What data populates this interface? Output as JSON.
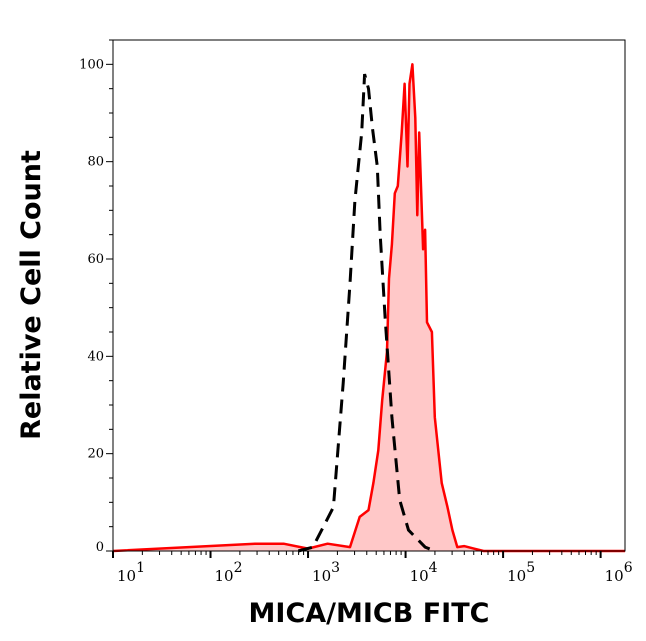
{
  "chart_data": {
    "type": "area",
    "xlabel": "MICA/MICB FITC",
    "ylabel": "Relative Cell Count",
    "xscale": "log",
    "xlim": [
      10,
      1778279
    ],
    "ylim": [
      0,
      105
    ],
    "xticks": [
      10,
      100,
      1000,
      10000,
      100000,
      1000000
    ],
    "xtick_labels": [
      {
        "base": "10",
        "exp": "1"
      },
      {
        "base": "10",
        "exp": "2"
      },
      {
        "base": "10",
        "exp": "3"
      },
      {
        "base": "10",
        "exp": "4"
      },
      {
        "base": "10",
        "exp": "5"
      },
      {
        "base": "10",
        "exp": "6"
      }
    ],
    "yticks": [
      0,
      20,
      40,
      60,
      80,
      100
    ],
    "ytick_labels": [
      "0",
      "20",
      "40",
      "60",
      "80",
      "100"
    ],
    "grid": false,
    "series": [
      {
        "style": "solid-filled",
        "color": "#ff0000",
        "fill": "#ffc8c8",
        "x": [
          10,
          288,
          562,
          1000,
          1585,
          2692,
          3388,
          4169,
          4677,
          5248,
          5754,
          6457,
          6761,
          7244,
          7762,
          8318,
          9120,
          9772,
          10471,
          10965,
          11749,
          12589,
          13183,
          13804,
          15136,
          15849,
          16596,
          18621,
          19953,
          23442,
          26915,
          30200,
          33884,
          39811,
          50119,
          63096,
          1778279
        ],
        "y": [
          0,
          1.5,
          1.5,
          0.5,
          1.5,
          0.8,
          7,
          8.4,
          14,
          20.7,
          31,
          41,
          56,
          63,
          73.5,
          75,
          86,
          96,
          79,
          96,
          100,
          89,
          69,
          86,
          62,
          66,
          47,
          45,
          27.5,
          14,
          9,
          4.3,
          0.8,
          1,
          0.5,
          0,
          0
        ]
      },
      {
        "style": "dashed",
        "color": "#000000",
        "x": [
          794,
          1122,
          1820,
          2291,
          2692,
          3020,
          3548,
          3802,
          4169,
          4571,
          5129,
          5495,
          6166,
          7244,
          8710,
          10715,
          15849,
          19953
        ],
        "y": [
          0,
          0.8,
          9,
          34.5,
          55,
          72,
          86,
          98,
          95,
          87,
          79,
          65,
          48,
          27.5,
          10.5,
          4.3,
          0.8,
          0
        ]
      }
    ]
  }
}
